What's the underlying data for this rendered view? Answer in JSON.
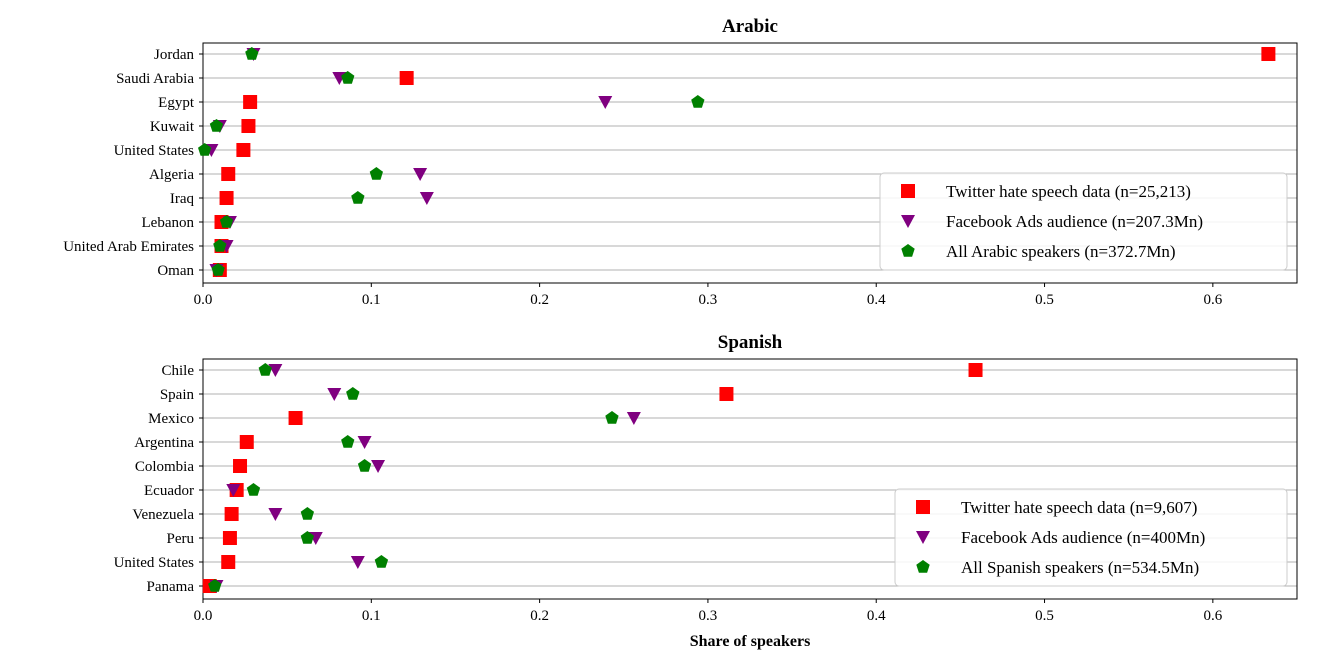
{
  "chart_data": [
    {
      "type": "scatter",
      "title": "Arabic",
      "xlabel": "",
      "xlim": [
        0,
        0.65
      ],
      "xticks": [
        "0.0",
        "0.1",
        "0.2",
        "0.3",
        "0.4",
        "0.5",
        "0.6"
      ],
      "grid": "horizontal",
      "legend_placement": "lower-right",
      "categories": [
        "Jordan",
        "Saudi Arabia",
        "Egypt",
        "Kuwait",
        "United States",
        "Algeria",
        "Iraq",
        "Lebanon",
        "United Arab Emirates",
        "Oman"
      ],
      "series": [
        {
          "name": "Twitter hate speech data (n=25,213)",
          "marker": "square",
          "color": "#ff0000",
          "values": [
            0.633,
            0.121,
            0.028,
            0.027,
            0.024,
            0.015,
            0.014,
            0.011,
            0.011,
            0.01
          ]
        },
        {
          "name": "Facebook Ads audience (n=207.3Mn)",
          "marker": "triangle-down",
          "color": "#800080",
          "values": [
            0.03,
            0.081,
            0.239,
            0.01,
            0.005,
            0.129,
            0.133,
            0.016,
            0.014,
            0.008
          ]
        },
        {
          "name": "All Arabic speakers (n=372.7Mn)",
          "marker": "pentagon",
          "color": "#008000",
          "values": [
            0.029,
            0.086,
            0.294,
            0.008,
            0.001,
            0.103,
            0.092,
            0.014,
            0.01,
            0.009
          ]
        }
      ]
    },
    {
      "type": "scatter",
      "title": "Spanish",
      "xlabel": "Share of speakers",
      "xlim": [
        0,
        0.65
      ],
      "xticks": [
        "0.0",
        "0.1",
        "0.2",
        "0.3",
        "0.4",
        "0.5",
        "0.6"
      ],
      "grid": "horizontal",
      "legend_placement": "lower-right",
      "categories": [
        "Chile",
        "Spain",
        "Mexico",
        "Argentina",
        "Colombia",
        "Ecuador",
        "Venezuela",
        "Peru",
        "United States",
        "Panama"
      ],
      "series": [
        {
          "name": "Twitter hate speech data (n=9,607)",
          "marker": "square",
          "color": "#ff0000",
          "values": [
            0.459,
            0.311,
            0.055,
            0.026,
            0.022,
            0.02,
            0.017,
            0.016,
            0.015,
            0.004
          ]
        },
        {
          "name": "Facebook Ads audience (n=400Mn)",
          "marker": "triangle-down",
          "color": "#800080",
          "values": [
            0.043,
            0.078,
            0.256,
            0.096,
            0.104,
            0.018,
            0.043,
            0.067,
            0.092,
            0.008
          ]
        },
        {
          "name": "All Spanish speakers (n=534.5Mn)",
          "marker": "pentagon",
          "color": "#008000",
          "values": [
            0.037,
            0.089,
            0.243,
            0.086,
            0.096,
            0.03,
            0.062,
            0.062,
            0.106,
            0.007
          ]
        }
      ]
    }
  ]
}
